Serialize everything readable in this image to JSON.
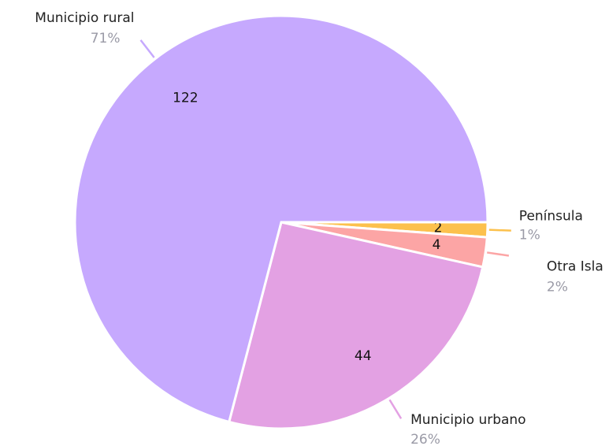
{
  "chart_data": {
    "type": "pie",
    "categories": [
      "Península",
      "Otra Isla",
      "Municipio urbano",
      "Municipio rural"
    ],
    "values": [
      2,
      4,
      44,
      122
    ],
    "percent_labels": [
      "1%",
      "2%",
      "26%",
      "71%"
    ],
    "colors": [
      "#fcc14d",
      "#fca5a5",
      "#e3a1e3",
      "#c6a9fe"
    ]
  }
}
